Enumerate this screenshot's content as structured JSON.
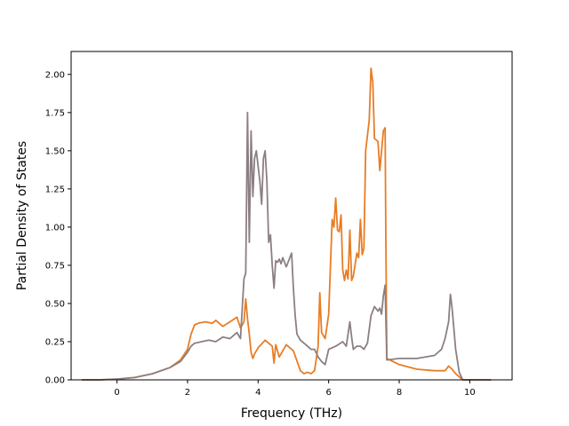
{
  "chart_data": {
    "type": "line",
    "title": "",
    "xlabel": "Frequency (THz)",
    "ylabel": "Partial Density of States",
    "xlim": [
      -1.3,
      11.2
    ],
    "ylim": [
      0,
      2.15
    ],
    "grid": false,
    "legend": "none",
    "xticks": [
      0,
      2,
      4,
      6,
      8,
      10
    ],
    "xtick_labels": [
      "0",
      "2",
      "4",
      "6",
      "8",
      "10"
    ],
    "yticks": [
      0.0,
      0.25,
      0.5,
      0.75,
      1.0,
      1.25,
      1.5,
      1.75,
      2.0
    ],
    "ytick_labels": [
      "0.00",
      "0.25",
      "0.50",
      "0.75",
      "1.00",
      "1.25",
      "1.50",
      "1.75",
      "2.00"
    ],
    "series": [
      {
        "color": "#e87d24",
        "x": [
          -1.0,
          -0.5,
          0,
          0.5,
          1.0,
          1.5,
          1.8,
          2.0,
          2.1,
          2.2,
          2.3,
          2.5,
          2.7,
          2.8,
          3.0,
          3.2,
          3.4,
          3.5,
          3.6,
          3.65,
          3.7,
          3.75,
          3.8,
          3.85,
          3.9,
          4.0,
          4.2,
          4.4,
          4.45,
          4.5,
          4.6,
          4.8,
          5.0,
          5.2,
          5.3,
          5.4,
          5.5,
          5.6,
          5.7,
          5.75,
          5.8,
          5.85,
          5.9,
          6.0,
          6.1,
          6.15,
          6.2,
          6.25,
          6.3,
          6.35,
          6.4,
          6.45,
          6.5,
          6.55,
          6.6,
          6.65,
          6.7,
          6.8,
          6.85,
          6.9,
          6.95,
          7.0,
          7.05,
          7.1,
          7.15,
          7.2,
          7.25,
          7.3,
          7.4,
          7.45,
          7.5,
          7.55,
          7.6,
          7.62,
          7.65,
          8.0,
          8.5,
          9.0,
          9.3,
          9.4,
          9.5,
          9.6,
          9.7,
          9.8,
          10.0,
          10.6
        ],
        "y": [
          0,
          0,
          0.005,
          0.015,
          0.04,
          0.08,
          0.13,
          0.2,
          0.3,
          0.36,
          0.37,
          0.38,
          0.37,
          0.39,
          0.35,
          0.38,
          0.41,
          0.34,
          0.38,
          0.53,
          0.4,
          0.3,
          0.18,
          0.14,
          0.17,
          0.21,
          0.26,
          0.22,
          0.11,
          0.23,
          0.15,
          0.23,
          0.19,
          0.06,
          0.04,
          0.05,
          0.04,
          0.06,
          0.22,
          0.57,
          0.31,
          0.29,
          0.27,
          0.43,
          1.05,
          1.0,
          1.19,
          0.98,
          0.97,
          1.08,
          0.72,
          0.65,
          0.72,
          0.66,
          0.98,
          0.65,
          0.68,
          0.83,
          0.8,
          1.05,
          0.82,
          0.86,
          1.5,
          1.6,
          1.7,
          2.04,
          1.95,
          1.58,
          1.56,
          1.37,
          1.5,
          1.63,
          1.65,
          1.0,
          0.14,
          0.1,
          0.07,
          0.06,
          0.06,
          0.09,
          0.07,
          0.04,
          0.02,
          0.0,
          0,
          0
        ]
      },
      {
        "color": "#8c7f82",
        "x": [
          -1.0,
          -0.5,
          0,
          0.5,
          1.0,
          1.5,
          1.8,
          2.0,
          2.1,
          2.2,
          2.4,
          2.6,
          2.8,
          3.0,
          3.2,
          3.4,
          3.5,
          3.6,
          3.65,
          3.7,
          3.75,
          3.8,
          3.85,
          3.9,
          3.95,
          4.0,
          4.05,
          4.1,
          4.15,
          4.2,
          4.25,
          4.3,
          4.35,
          4.4,
          4.45,
          4.5,
          4.55,
          4.6,
          4.65,
          4.7,
          4.8,
          4.9,
          4.95,
          5.0,
          5.05,
          5.1,
          5.2,
          5.4,
          5.5,
          5.6,
          5.7,
          5.8,
          5.9,
          6.0,
          6.2,
          6.4,
          6.5,
          6.6,
          6.65,
          6.7,
          6.8,
          6.9,
          7.0,
          7.1,
          7.2,
          7.3,
          7.4,
          7.45,
          7.5,
          7.55,
          7.6,
          7.62,
          7.65,
          8.0,
          8.5,
          9.0,
          9.2,
          9.3,
          9.4,
          9.45,
          9.5,
          9.6,
          9.7,
          9.8,
          10.0,
          10.6
        ],
        "y": [
          0,
          0,
          0.005,
          0.015,
          0.04,
          0.08,
          0.12,
          0.18,
          0.22,
          0.24,
          0.25,
          0.26,
          0.25,
          0.28,
          0.27,
          0.31,
          0.27,
          0.66,
          0.7,
          1.75,
          0.9,
          1.63,
          1.2,
          1.45,
          1.5,
          1.4,
          1.3,
          1.15,
          1.45,
          1.5,
          1.3,
          0.9,
          0.95,
          0.75,
          0.6,
          0.78,
          0.77,
          0.79,
          0.76,
          0.8,
          0.74,
          0.8,
          0.83,
          0.6,
          0.42,
          0.3,
          0.26,
          0.22,
          0.2,
          0.2,
          0.15,
          0.12,
          0.1,
          0.2,
          0.22,
          0.25,
          0.22,
          0.38,
          0.28,
          0.2,
          0.22,
          0.22,
          0.2,
          0.24,
          0.42,
          0.48,
          0.45,
          0.47,
          0.43,
          0.55,
          0.62,
          0.43,
          0.13,
          0.14,
          0.14,
          0.16,
          0.2,
          0.27,
          0.38,
          0.56,
          0.47,
          0.2,
          0.05,
          0.0,
          0,
          0
        ]
      }
    ]
  }
}
